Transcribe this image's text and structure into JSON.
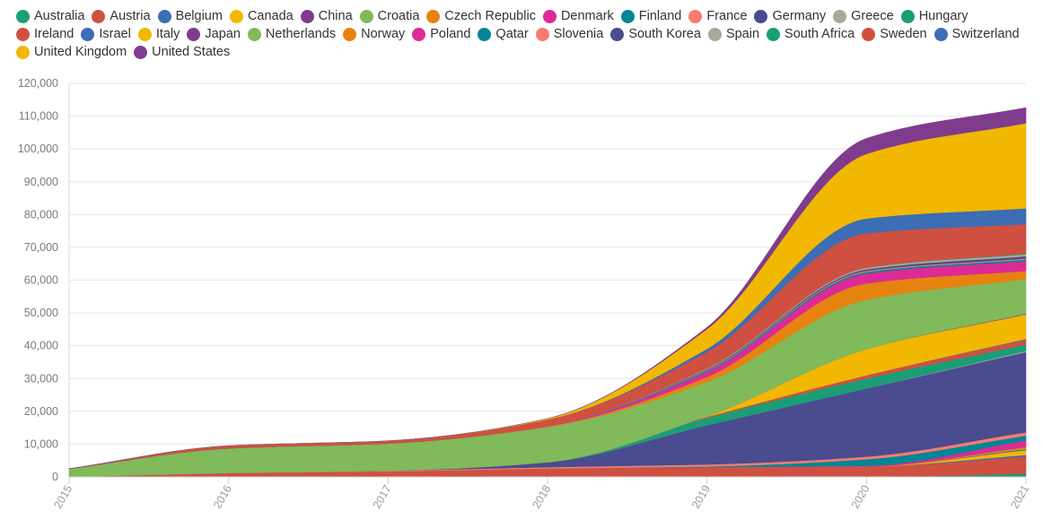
{
  "chart_data": {
    "type": "area",
    "stacked": true,
    "x": [
      2015,
      2016,
      2017,
      2018,
      2019,
      2020,
      2021
    ],
    "xticks": [
      "2015",
      "2016",
      "2017",
      "2018",
      "2019",
      "2020",
      "2021"
    ],
    "ylim": [
      0,
      120000
    ],
    "yticks": [
      "0",
      "10,000",
      "20,000",
      "30,000",
      "40,000",
      "50,000",
      "60,000",
      "70,000",
      "80,000",
      "90,000",
      "100,000",
      "110,000",
      "120,000"
    ],
    "ytick_values": [
      0,
      10000,
      20000,
      30000,
      40000,
      50000,
      60000,
      70000,
      80000,
      90000,
      100000,
      110000,
      120000
    ],
    "legend_position": "top",
    "grid": true,
    "series": [
      {
        "name": "Australia",
        "color": "#1a9e77",
        "values": [
          0,
          0,
          0,
          0,
          0,
          0,
          1000
        ]
      },
      {
        "name": "Austria",
        "color": "#cf5040",
        "values": [
          0,
          1200,
          1700,
          2600,
          3000,
          3200,
          5200
        ]
      },
      {
        "name": "Belgium",
        "color": "#3c6db5",
        "values": [
          0,
          0,
          0,
          0,
          0,
          0,
          500
        ]
      },
      {
        "name": "Canada",
        "color": "#f2b701",
        "values": [
          0,
          0,
          0,
          0,
          0,
          0,
          1500
        ]
      },
      {
        "name": "China",
        "color": "#7f3c8d",
        "values": [
          0,
          0,
          0,
          0,
          0,
          0,
          300
        ]
      },
      {
        "name": "Croatia",
        "color": "#80ba5a",
        "values": [
          0,
          0,
          0,
          0,
          0,
          0,
          300
        ]
      },
      {
        "name": "Czech Republic",
        "color": "#e68310",
        "values": [
          0,
          0,
          0,
          0,
          0,
          0,
          300
        ]
      },
      {
        "name": "Denmark",
        "color": "#dc2b96",
        "values": [
          0,
          0,
          0,
          0,
          0,
          200,
          2000
        ]
      },
      {
        "name": "Finland",
        "color": "#008695",
        "values": [
          0,
          0,
          0,
          0,
          200,
          2000,
          1500
        ]
      },
      {
        "name": "France",
        "color": "#f97b72",
        "values": [
          0,
          0,
          200,
          400,
          600,
          800,
          1000
        ]
      },
      {
        "name": "Germany",
        "color": "#4b4b8f",
        "values": [
          0,
          0,
          0,
          1500,
          12000,
          20800,
          24500
        ]
      },
      {
        "name": "Greece",
        "color": "#a5aa99",
        "values": [
          0,
          0,
          0,
          0,
          0,
          0,
          300
        ]
      },
      {
        "name": "Hungary",
        "color": "#1a9e77",
        "values": [
          0,
          0,
          0,
          0,
          2200,
          3000,
          2000
        ]
      },
      {
        "name": "Ireland",
        "color": "#cf5040",
        "values": [
          0,
          0,
          0,
          0,
          300,
          1000,
          1500
        ]
      },
      {
        "name": "Israel",
        "color": "#3c6db5",
        "values": [
          0,
          0,
          0,
          0,
          0,
          0,
          200
        ]
      },
      {
        "name": "Italy",
        "color": "#f2b701",
        "values": [
          0,
          0,
          0,
          0,
          200,
          8000,
          7500
        ]
      },
      {
        "name": "Japan",
        "color": "#7f3c8d",
        "values": [
          0,
          0,
          0,
          0,
          0,
          0,
          200
        ]
      },
      {
        "name": "Netherlands",
        "color": "#80ba5a",
        "values": [
          2500,
          7500,
          8300,
          10700,
          10500,
          15000,
          10500
        ]
      },
      {
        "name": "Norway",
        "color": "#e68310",
        "values": [
          0,
          0,
          0,
          200,
          1500,
          5000,
          2500
        ]
      },
      {
        "name": "Poland",
        "color": "#dc2b96",
        "values": [
          0,
          0,
          0,
          100,
          1500,
          3000,
          3000
        ]
      },
      {
        "name": "Qatar",
        "color": "#008695",
        "values": [
          0,
          0,
          0,
          0,
          300,
          500,
          500
        ]
      },
      {
        "name": "Slovenia",
        "color": "#f97b72",
        "values": [
          0,
          0,
          0,
          0,
          200,
          300,
          300
        ]
      },
      {
        "name": "South Korea",
        "color": "#4b4b8f",
        "values": [
          0,
          0,
          0,
          0,
          300,
          500,
          700
        ]
      },
      {
        "name": "Spain",
        "color": "#a5aa99",
        "values": [
          0,
          0,
          0,
          0,
          300,
          500,
          600
        ]
      },
      {
        "name": "South Africa",
        "color": "#1a9e77",
        "values": [
          0,
          0,
          0,
          0,
          0,
          0,
          200
        ]
      },
      {
        "name": "Sweden",
        "color": "#cf5040",
        "values": [
          0,
          800,
          800,
          2000,
          5000,
          10500,
          9000
        ]
      },
      {
        "name": "Switzerland",
        "color": "#3c6db5",
        "values": [
          0,
          0,
          0,
          0,
          1000,
          4500,
          4800
        ]
      },
      {
        "name": "United Kingdom",
        "color": "#f2b701",
        "values": [
          0,
          0,
          0,
          300,
          6000,
          19700,
          26000
        ]
      },
      {
        "name": "United States",
        "color": "#7f3c8d",
        "values": [
          0,
          0,
          0,
          0,
          500,
          4700,
          4700
        ]
      }
    ]
  }
}
